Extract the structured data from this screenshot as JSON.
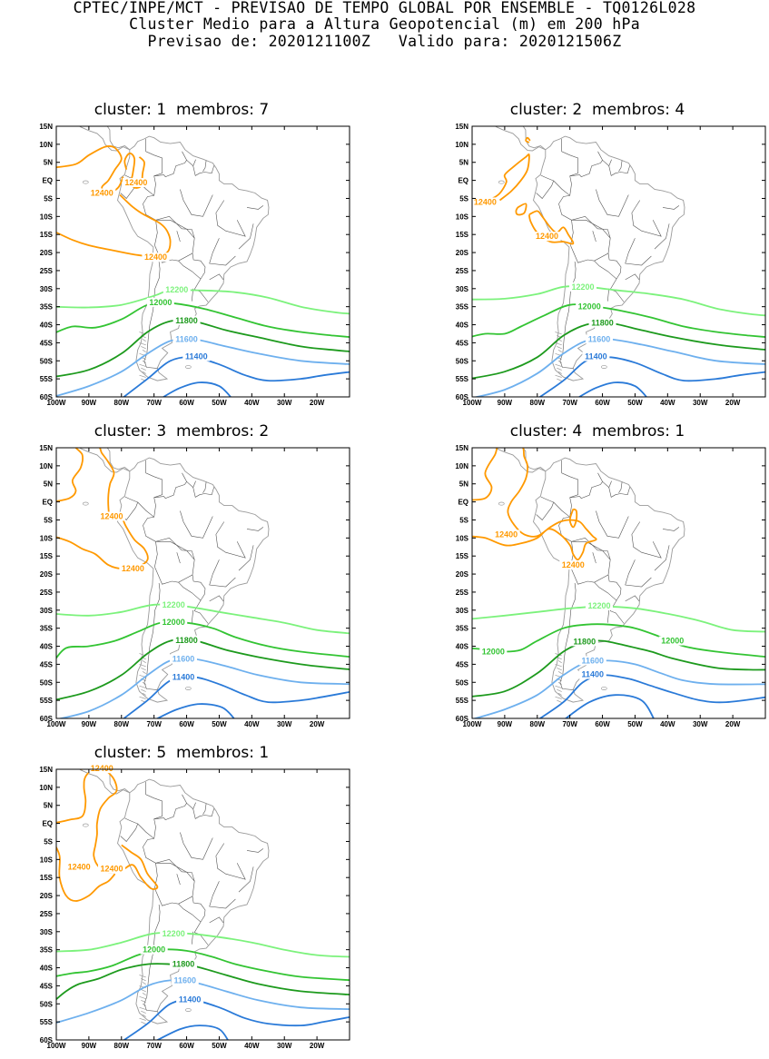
{
  "header": {
    "line1": "CPTEC/INPE/MCT - PREVISAO DE TEMPO GLOBAL POR ENSEMBLE - TQ0126L028",
    "line2": "Cluster Medio para a Altura Geopotencial (m) em 200 hPa",
    "line3_forecast_label": "Previsao de:",
    "line3_forecast_value": "2020121100Z",
    "line3_valid_label": "Valido para:",
    "line3_valid_value": "2020121506Z"
  },
  "axes": {
    "lat_ticks": [
      "15N",
      "10N",
      "5N",
      "EQ",
      "5S",
      "10S",
      "15S",
      "20S",
      "25S",
      "30S",
      "35S",
      "40S",
      "45S",
      "50S",
      "55S",
      "60S"
    ],
    "lon_ticks": [
      "100W",
      "90W",
      "80W",
      "70W",
      "60W",
      "50W",
      "40W",
      "30W",
      "20W"
    ]
  },
  "colors": {
    "c12400": "#ff9900",
    "c12200": "#7cf27c",
    "c12000": "#33c433",
    "c11800": "#1d9a1d",
    "c11600": "#6eb0ee",
    "c11400": "#2a7ad8",
    "coast": "#9a9a9a",
    "border": "#555555"
  },
  "panels": [
    {
      "cluster_label": "cluster:",
      "cluster": "1",
      "members_label": "membros:",
      "members": "7",
      "contour_labels": [
        "12400",
        "12400",
        "12400",
        "12200",
        "12000",
        "11800",
        "11600",
        "11400"
      ]
    },
    {
      "cluster_label": "cluster:",
      "cluster": "2",
      "members_label": "membros:",
      "members": "4",
      "contour_labels": [
        "12400",
        "12400",
        "12200",
        "12000",
        "11800",
        "11600",
        "11400"
      ]
    },
    {
      "cluster_label": "cluster:",
      "cluster": "3",
      "members_label": "membros:",
      "members": "2",
      "contour_labels": [
        "12400",
        "12400",
        "12200",
        "12000",
        "11800",
        "11600",
        "11400"
      ]
    },
    {
      "cluster_label": "cluster:",
      "cluster": "4",
      "members_label": "membros:",
      "members": "1",
      "contour_labels": [
        "12400",
        "12400",
        "12200",
        "12000",
        "12000",
        "11800",
        "11600",
        "11400"
      ]
    },
    {
      "cluster_label": "cluster:",
      "cluster": "5",
      "members_label": "membros:",
      "members": "1",
      "contour_labels": [
        "12400",
        "12400",
        "12400",
        "12200",
        "12000",
        "11800",
        "11600",
        "11400"
      ]
    }
  ]
}
